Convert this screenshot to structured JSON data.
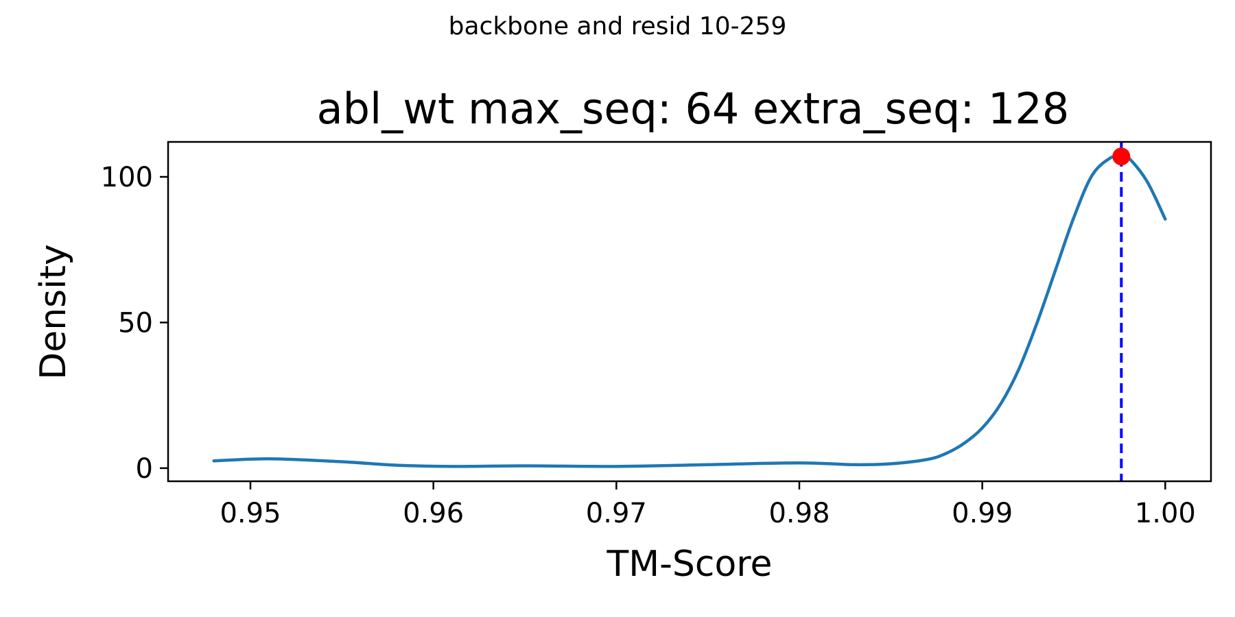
{
  "chart_data": {
    "type": "line",
    "suptitle": "backbone and resid 10-259",
    "title": "abl_wt max_seq: 64 extra_seq: 128",
    "xlabel": "TM-Score",
    "ylabel": "Density",
    "xlim": [
      0.9455,
      1.0025
    ],
    "ylim": [
      -4.5,
      112
    ],
    "xticks": [
      0.95,
      0.96,
      0.97,
      0.98,
      0.99,
      1.0
    ],
    "xtick_labels": [
      "0.95",
      "0.96",
      "0.97",
      "0.98",
      "0.99",
      "1.00"
    ],
    "yticks": [
      0,
      50,
      100
    ],
    "ytick_labels": [
      "0",
      "50",
      "100"
    ],
    "grid": false,
    "legend": "none",
    "series": [
      {
        "color": "#1f77b4",
        "x": [
          0.948,
          0.951,
          0.955,
          0.958,
          0.961,
          0.965,
          0.97,
          0.975,
          0.98,
          0.983,
          0.985,
          0.987,
          0.988,
          0.989,
          0.99,
          0.991,
          0.992,
          0.993,
          0.994,
          0.995,
          0.996,
          0.997,
          0.9976,
          0.998,
          0.999,
          1.0
        ],
        "y": [
          2.5,
          3.2,
          2.2,
          1.0,
          0.6,
          0.8,
          0.6,
          1.2,
          1.8,
          1.2,
          1.5,
          3.0,
          5.0,
          8.5,
          13.8,
          22.0,
          34.0,
          50.0,
          68.0,
          86.0,
          100.5,
          106.5,
          107.0,
          106.5,
          98.5,
          85.5
        ]
      }
    ],
    "vline": {
      "x": 0.9976,
      "color": "#0000ff",
      "style": "dashed"
    },
    "peak_marker": {
      "x": 0.9976,
      "y": 107.0,
      "color": "#ff0000"
    }
  }
}
